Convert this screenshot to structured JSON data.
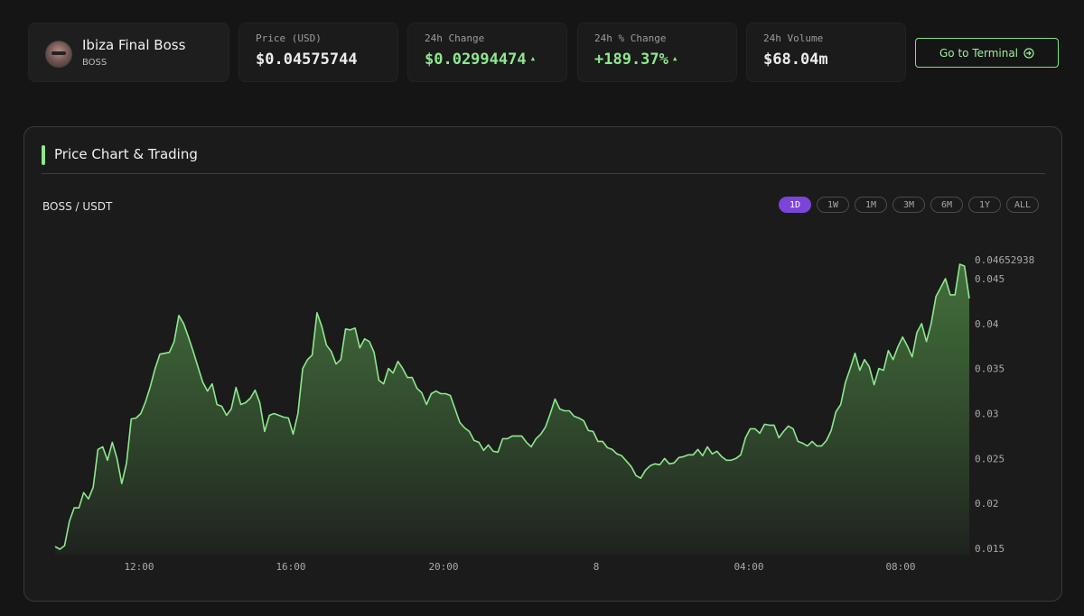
{
  "token": {
    "name": "Ibiza Final Boss",
    "symbol": "BOSS"
  },
  "stats": [
    {
      "label": "Price (USD)",
      "value": "$0.04575744",
      "trend": "none"
    },
    {
      "label": "24h Change",
      "value": "$0.02994474",
      "trend": "up"
    },
    {
      "label": "24h % Change",
      "value": "+189.37%",
      "trend": "up"
    },
    {
      "label": "24h Volume",
      "value": "$68.04m",
      "trend": "none"
    }
  ],
  "terminal_button": {
    "label": "Go to Terminal",
    "icon": "arrow-right-circle-icon"
  },
  "panel": {
    "title": "Price Chart & Trading",
    "pair": "BOSS / USDT"
  },
  "timeframes": [
    {
      "label": "1D",
      "active": true
    },
    {
      "label": "1W",
      "active": false
    },
    {
      "label": "1M",
      "active": false
    },
    {
      "label": "3M",
      "active": false
    },
    {
      "label": "6M",
      "active": false
    },
    {
      "label": "1Y",
      "active": false
    },
    {
      "label": "ALL",
      "active": false
    }
  ],
  "colors": {
    "accent": "#8ee88e",
    "line": "#8ee88e",
    "active_tab": "#7b45d9",
    "background": "#151515"
  },
  "chart_data": {
    "type": "area",
    "title": "",
    "xlabel": "",
    "ylabel": "",
    "current_value_label": "0.04652938",
    "x_ticks": [
      "12:00",
      "16:00",
      "20:00",
      "8",
      "04:00",
      "08:00"
    ],
    "y_ticks": [
      "0.015",
      "0.02",
      "0.025",
      "0.03",
      "0.035",
      "0.04",
      "0.045"
    ],
    "y_tick_values": [
      0.015,
      0.02,
      0.025,
      0.03,
      0.035,
      0.04,
      0.045
    ],
    "ylim": [
      0.015,
      0.0466
    ],
    "grid": false,
    "x_hours_start": "09:40",
    "x_hours_end": "09:40",
    "series": [
      {
        "values": [
          0.0152,
          0.0149,
          0.0153,
          0.018,
          0.0195,
          0.0195,
          0.0212,
          0.0205,
          0.0218,
          0.026,
          0.0263,
          0.0248,
          0.0268,
          0.025,
          0.0222,
          0.0245,
          0.0294,
          0.0295,
          0.03,
          0.0313,
          0.033,
          0.035,
          0.0366,
          0.0367,
          0.0368,
          0.038,
          0.0409,
          0.04,
          0.0385,
          0.0369,
          0.0352,
          0.0335,
          0.0325,
          0.0333,
          0.031,
          0.0308,
          0.0298,
          0.0305,
          0.0329,
          0.031,
          0.0312,
          0.0317,
          0.0326,
          0.0312,
          0.028,
          0.0298,
          0.03,
          0.0298,
          0.0296,
          0.0295,
          0.0277,
          0.03,
          0.035,
          0.036,
          0.0365,
          0.0412,
          0.0397,
          0.0376,
          0.0369,
          0.0355,
          0.036,
          0.0394,
          0.0393,
          0.0395,
          0.0373,
          0.0383,
          0.038,
          0.0368,
          0.0337,
          0.0333,
          0.035,
          0.0345,
          0.0358,
          0.035,
          0.034,
          0.034,
          0.0328,
          0.0323,
          0.031,
          0.0322,
          0.0325,
          0.0322,
          0.0322,
          0.032,
          0.0305,
          0.029,
          0.0284,
          0.028,
          0.027,
          0.0268,
          0.0259,
          0.0265,
          0.0258,
          0.0257,
          0.0272,
          0.0272,
          0.0275,
          0.0275,
          0.0275,
          0.0268,
          0.0263,
          0.0272,
          0.0277,
          0.0285,
          0.03,
          0.0316,
          0.0305,
          0.0303,
          0.0303,
          0.0297,
          0.0295,
          0.0292,
          0.0281,
          0.028,
          0.0269,
          0.0269,
          0.0262,
          0.026,
          0.0255,
          0.0253,
          0.0247,
          0.0241,
          0.0231,
          0.0228,
          0.0237,
          0.0242,
          0.0244,
          0.0243,
          0.025,
          0.0244,
          0.0245,
          0.0251,
          0.0252,
          0.0254,
          0.0254,
          0.026,
          0.0253,
          0.0263,
          0.0255,
          0.0258,
          0.0252,
          0.0248,
          0.0248,
          0.025,
          0.0254,
          0.0273,
          0.0283,
          0.0283,
          0.0278,
          0.0288,
          0.0287,
          0.0287,
          0.0273,
          0.028,
          0.0286,
          0.0283,
          0.0269,
          0.0267,
          0.0264,
          0.0269,
          0.0264,
          0.0264,
          0.027,
          0.0281,
          0.0302,
          0.031,
          0.0335,
          0.035,
          0.0367,
          0.0348,
          0.036,
          0.0352,
          0.0332,
          0.035,
          0.0348,
          0.037,
          0.036,
          0.0374,
          0.0385,
          0.0375,
          0.0363,
          0.039,
          0.04,
          0.038,
          0.04,
          0.043,
          0.044,
          0.045,
          0.0432,
          0.0432,
          0.0466,
          0.0464,
          0.0428
        ]
      }
    ]
  }
}
